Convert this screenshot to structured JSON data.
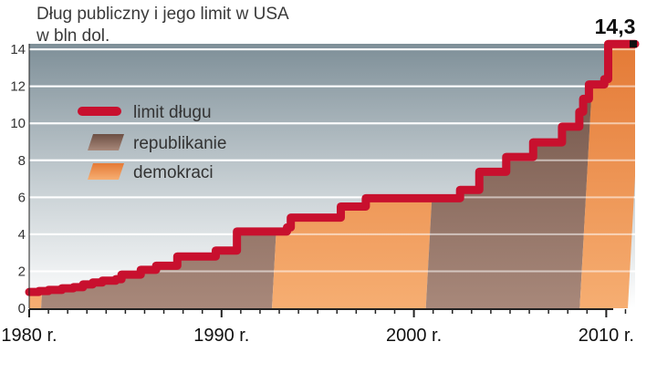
{
  "colors": {
    "limit": "#c8102e",
    "republikanie": "#7d5b4e",
    "demokraci": "#ee8a46",
    "background_top": "#7e8f98",
    "background_bottom": "#ffffff"
  },
  "chart_data": {
    "type": "area",
    "title": "Dług publiczny i jego limit w USA",
    "subtitle": "w bln dol.",
    "xlabel": "",
    "ylabel": "",
    "xlim": [
      1980,
      2011.5
    ],
    "ylim": [
      0,
      14.3
    ],
    "yticks": [
      "0",
      "2",
      "4",
      "6",
      "8",
      "10",
      "12",
      "14"
    ],
    "ytick_values": [
      0,
      2,
      4,
      6,
      8,
      10,
      12,
      14
    ],
    "xticks": [
      "1980 r.",
      "1990 r.",
      "2000 r.",
      "2010 r."
    ],
    "xtick_values": [
      1980,
      1990,
      2000,
      2010
    ],
    "end_label": "14,3",
    "grid": true,
    "legend": [
      {
        "label": "limit długu",
        "kind": "line",
        "color": "#c8102e"
      },
      {
        "label": "republikanie",
        "kind": "area",
        "color": "#7d5b4e"
      },
      {
        "label": "demokraci",
        "kind": "area",
        "color": "#ee8a46"
      }
    ],
    "periods": [
      {
        "party": "demokraci",
        "start": 1980,
        "end": 1981
      },
      {
        "party": "republikanie",
        "start": 1981,
        "end": 1993
      },
      {
        "party": "demokraci",
        "start": 1993,
        "end": 2001
      },
      {
        "party": "republikanie",
        "start": 2001,
        "end": 2009
      },
      {
        "party": "demokraci",
        "start": 2009,
        "end": 2011.5
      }
    ],
    "series": [
      {
        "name": "limit długu",
        "points": [
          [
            1980,
            0.88
          ],
          [
            1980.5,
            0.93
          ],
          [
            1981,
            0.99
          ],
          [
            1981.7,
            1.08
          ],
          [
            1982.3,
            1.14
          ],
          [
            1982.8,
            1.29
          ],
          [
            1983.3,
            1.39
          ],
          [
            1983.8,
            1.49
          ],
          [
            1984.5,
            1.57
          ],
          [
            1984.8,
            1.82
          ],
          [
            1985.8,
            2.08
          ],
          [
            1986.6,
            2.3
          ],
          [
            1987.7,
            2.8
          ],
          [
            1989.7,
            3.12
          ],
          [
            1990.8,
            4.15
          ],
          [
            1993.4,
            4.37
          ],
          [
            1993.6,
            4.9
          ],
          [
            1996.2,
            5.5
          ],
          [
            1997.5,
            5.95
          ],
          [
            2002.4,
            6.4
          ],
          [
            2003.4,
            7.38
          ],
          [
            2004.8,
            8.18
          ],
          [
            2006.2,
            8.97
          ],
          [
            2007.7,
            9.82
          ],
          [
            2008.6,
            10.62
          ],
          [
            2008.8,
            11.32
          ],
          [
            2009.1,
            12.1
          ],
          [
            2009.9,
            12.39
          ],
          [
            2010.1,
            14.29
          ],
          [
            2011.5,
            14.29
          ]
        ]
      }
    ]
  }
}
